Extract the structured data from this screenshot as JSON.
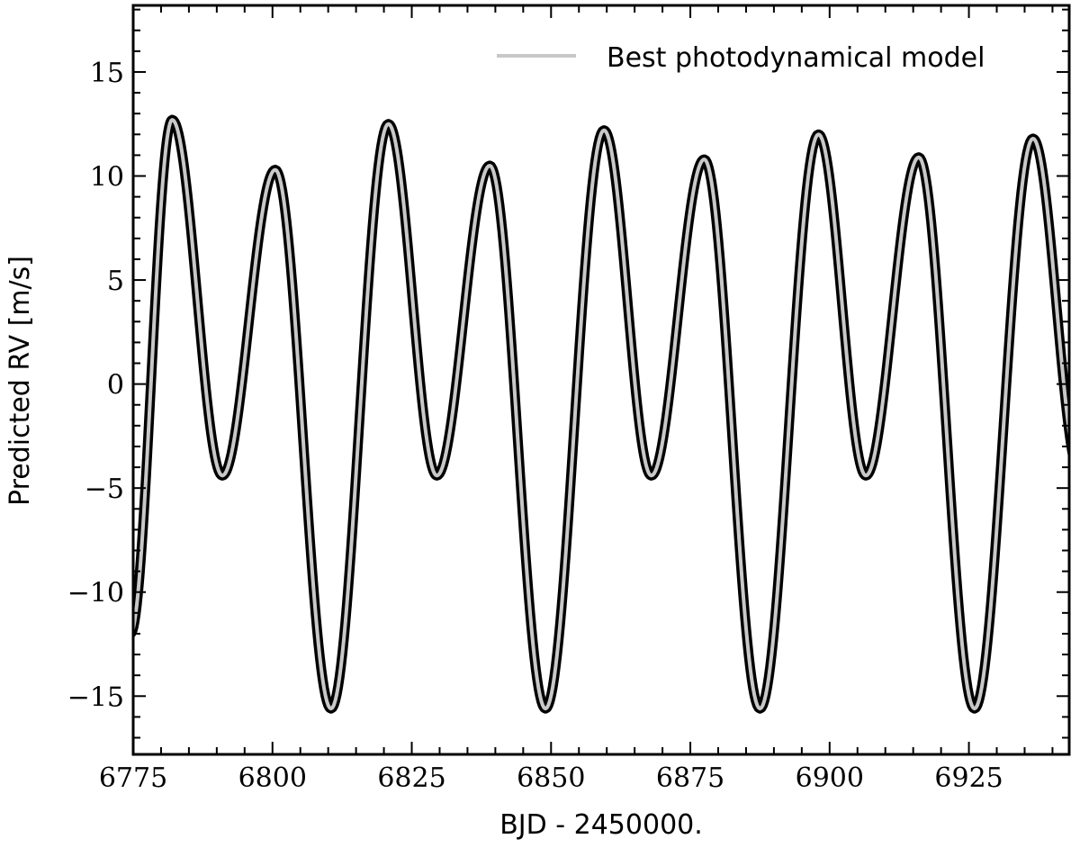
{
  "chart_data": {
    "type": "line",
    "title": "",
    "xlabel": "BJD - 2450000.",
    "ylabel": "Predicted RV [m/s]",
    "xlim": [
      6775,
      6943
    ],
    "ylim": [
      -17.8,
      18.2
    ],
    "xticks": [
      6775,
      6800,
      6825,
      6850,
      6875,
      6900,
      6925
    ],
    "xtick_labels": [
      "6775",
      "6800",
      "6825",
      "6850",
      "6875",
      "6900",
      "6925"
    ],
    "yticks": [
      -15,
      -10,
      -5,
      0,
      5,
      10,
      15
    ],
    "ytick_labels": [
      "−15",
      "−10",
      "−5",
      "0",
      "5",
      "10",
      "15"
    ],
    "legend": {
      "position": "top-right",
      "entries": [
        "Best photodynamical model"
      ]
    },
    "grid": false,
    "series": [
      {
        "name": "Best photodynamical model",
        "color": "#c8c8c8",
        "band_color": "#000000",
        "extrema": [
          {
            "x": 6774.5,
            "y": -12.0
          },
          {
            "x": 6782.0,
            "y": 12.7
          },
          {
            "x": 6791.0,
            "y": -4.4
          },
          {
            "x": 6800.5,
            "y": 10.3
          },
          {
            "x": 6810.5,
            "y": -15.6
          },
          {
            "x": 6820.8,
            "y": 12.5
          },
          {
            "x": 6829.5,
            "y": -4.4
          },
          {
            "x": 6839.0,
            "y": 10.5
          },
          {
            "x": 6849.0,
            "y": -15.6
          },
          {
            "x": 6859.5,
            "y": 12.2
          },
          {
            "x": 6868.0,
            "y": -4.4
          },
          {
            "x": 6877.5,
            "y": 10.8
          },
          {
            "x": 6887.5,
            "y": -15.6
          },
          {
            "x": 6898.0,
            "y": 12.0
          },
          {
            "x": 6906.5,
            "y": -4.4
          },
          {
            "x": 6916.0,
            "y": 10.9
          },
          {
            "x": 6926.0,
            "y": -15.6
          },
          {
            "x": 6936.5,
            "y": 11.8
          },
          {
            "x": 6945.0,
            "y": -4.4
          }
        ]
      }
    ]
  }
}
